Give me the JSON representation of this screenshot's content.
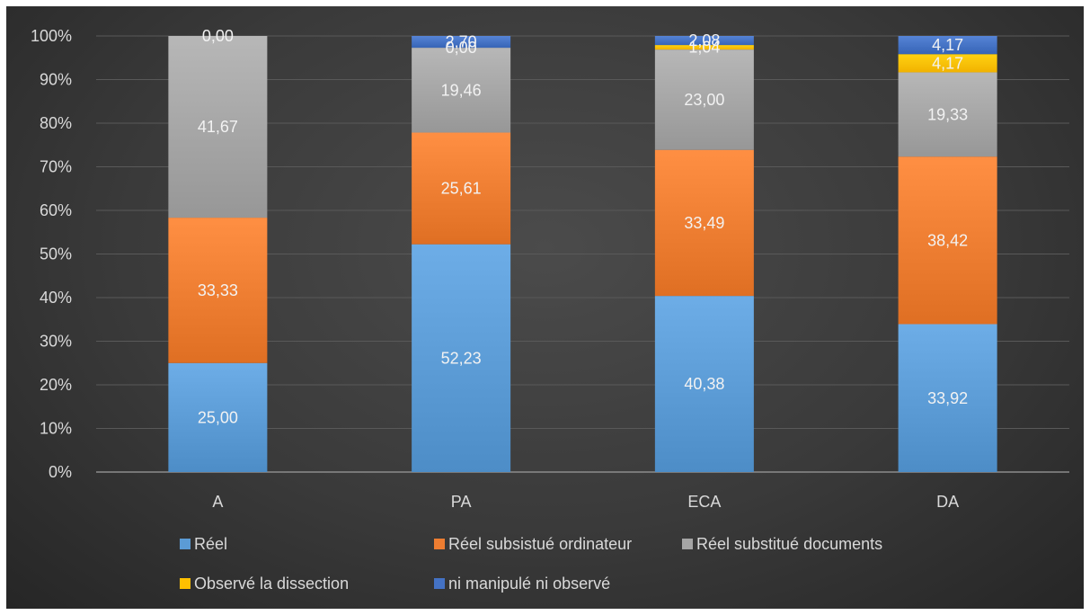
{
  "chart_data": {
    "type": "bar",
    "stacked": true,
    "percent_stacked": true,
    "categories": [
      "A",
      "PA",
      "ECA",
      "DA"
    ],
    "series": [
      {
        "name": "Réel",
        "color": "#5b9bd5",
        "values": [
          25.0,
          52.23,
          40.38,
          33.92
        ],
        "labels": [
          "25,00",
          "52,23",
          "40,38",
          "33,92"
        ]
      },
      {
        "name": "Réel subsistué ordinateur",
        "color": "#ed7d31",
        "values": [
          33.33,
          25.61,
          33.49,
          38.42
        ],
        "labels": [
          "33,33",
          "25,61",
          "33,49",
          "38,42"
        ]
      },
      {
        "name": "Réel substitué documents",
        "color": "#a5a5a5",
        "values": [
          41.67,
          19.46,
          23.0,
          19.33
        ],
        "labels": [
          "41,67",
          "19,46",
          "23,00",
          "19,33"
        ]
      },
      {
        "name": "Observé la dissection",
        "color": "#ffc000",
        "values": [
          0.0,
          0.0,
          1.04,
          4.17
        ],
        "labels": [
          "0,00",
          "0,00",
          "1,04",
          "4,17"
        ]
      },
      {
        "name": "ni manipulé ni observé",
        "color": "#4472c4",
        "values": [
          0.0,
          2.7,
          2.08,
          4.17
        ],
        "labels": [
          "",
          "2,70",
          "2,08",
          "4,17"
        ]
      }
    ],
    "y_ticks": [
      "0%",
      "10%",
      "20%",
      "30%",
      "40%",
      "50%",
      "60%",
      "70%",
      "80%",
      "90%",
      "100%"
    ],
    "ylim": [
      0,
      100
    ],
    "grid": true,
    "legend_position": "bottom",
    "title": "",
    "xlabel": "",
    "ylabel": ""
  }
}
